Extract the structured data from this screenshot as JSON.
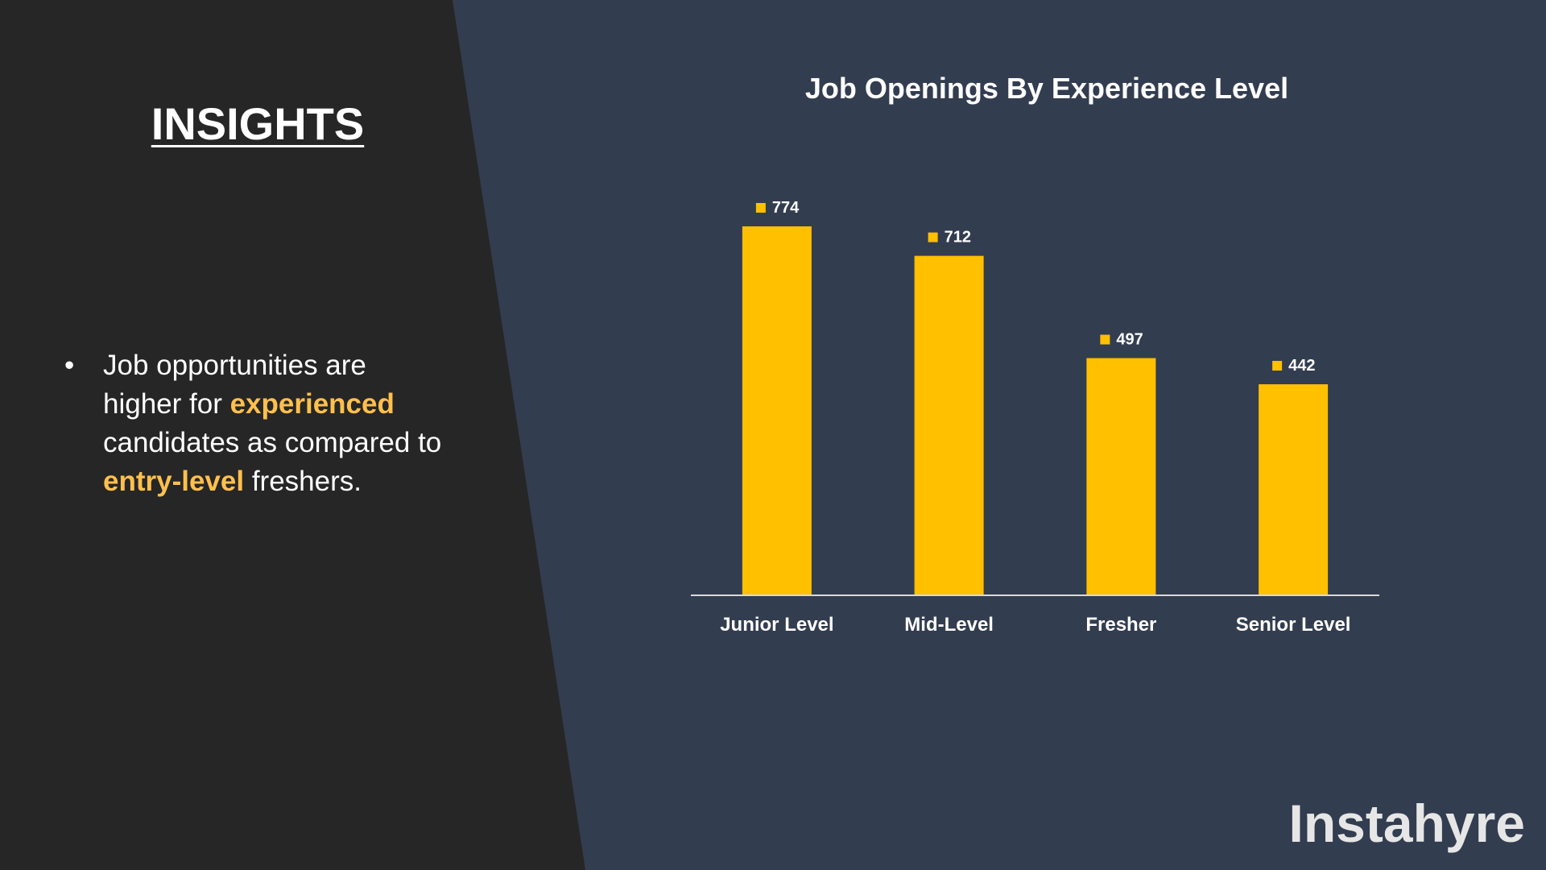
{
  "insights": {
    "title": "INSIGHTS",
    "bullet_marker": "•",
    "bullet_parts": [
      {
        "text": "Job opportunities are higher for ",
        "highlight": false
      },
      {
        "text": "experienced",
        "highlight": true
      },
      {
        "text": " candidates as compared to ",
        "highlight": false
      },
      {
        "text": "entry-level",
        "highlight": true
      },
      {
        "text": " freshers.",
        "highlight": false
      }
    ]
  },
  "brand": "Instahyre",
  "colors": {
    "left_panel": "#262626",
    "right_panel": "#333d50",
    "bar": "#ffc000",
    "highlight": "#ffc04d",
    "text": "#ffffff"
  },
  "chart_data": {
    "type": "bar",
    "title": "Job Openings By Experience Level",
    "categories": [
      "Junior Level",
      "Mid-Level",
      "Fresher",
      "Senior Level"
    ],
    "values": [
      774,
      712,
      497,
      442
    ],
    "data_labels": [
      "774",
      "712",
      "497",
      "442"
    ],
    "xlabel": "",
    "ylabel": "",
    "ylim": [
      0,
      774
    ],
    "grid": false,
    "legend": "none",
    "data_label_marker": "square"
  }
}
